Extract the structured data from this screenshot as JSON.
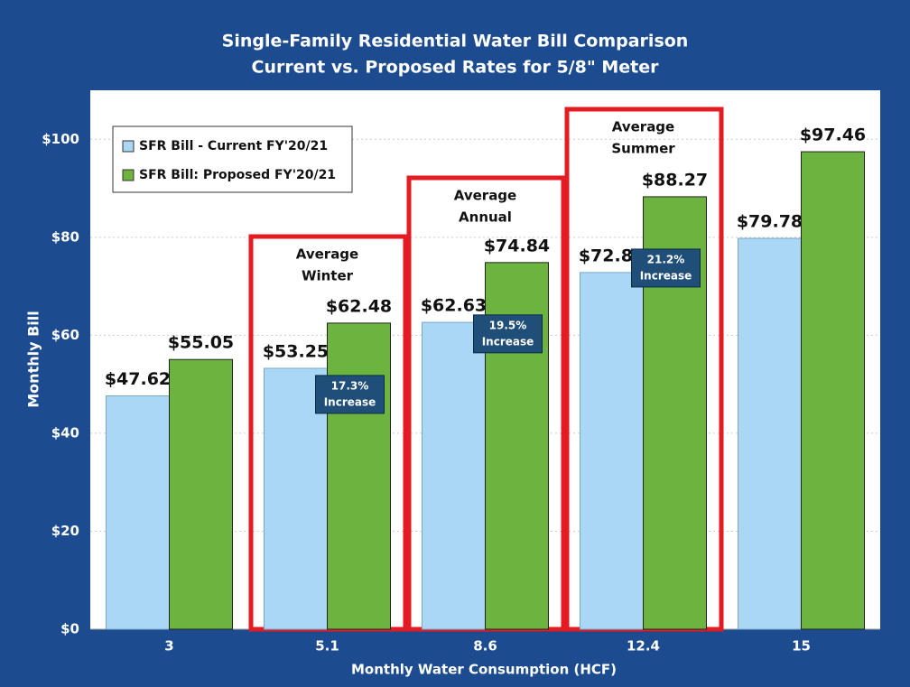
{
  "chart_data": {
    "type": "bar",
    "title": [
      "Single-Family Residential Water Bill Comparison",
      "Current vs. Proposed Rates  for 5/8\" Meter"
    ],
    "x_label": "Monthly Water Consumption (HCF)",
    "y_label": "Monthly Bill",
    "categories": [
      "3",
      "5.1",
      "8.6",
      "12.4",
      "15"
    ],
    "series": [
      {
        "name": "SFR Bill - Current FY'20/21",
        "color": "#aad8f4",
        "values": [
          47.62,
          53.25,
          62.63,
          72.81,
          79.78
        ],
        "value_labels": [
          "$47.62",
          "$53.25",
          "$62.63",
          "$72.81",
          "$79.78"
        ]
      },
      {
        "name": "SFR Bill: Proposed FY'20/21",
        "color": "#6cb33f",
        "values": [
          55.05,
          62.48,
          74.84,
          88.27,
          97.46
        ],
        "value_labels": [
          "$55.05",
          "$62.48",
          "$74.84",
          "$88.27",
          "$97.46"
        ]
      }
    ],
    "ylim": [
      0,
      110
    ],
    "yticks": [
      {
        "value": 0,
        "label": "$0"
      },
      {
        "value": 20,
        "label": "$20"
      },
      {
        "value": 40,
        "label": "$40"
      },
      {
        "value": 60,
        "label": "$60"
      },
      {
        "value": 80,
        "label": "$80"
      },
      {
        "value": 100,
        "label": "$100"
      }
    ],
    "grid": true,
    "legend": "upper left",
    "annotations": [
      {
        "label": [
          "Average",
          "Winter"
        ],
        "increase": [
          "17.3%",
          "Increase"
        ]
      },
      {
        "label": [
          "Average",
          "Annual"
        ],
        "increase": [
          "19.5%",
          "Increase"
        ]
      },
      {
        "label": [
          "Average",
          "Summer"
        ],
        "increase": [
          "21.2%",
          "Increase"
        ]
      }
    ]
  }
}
